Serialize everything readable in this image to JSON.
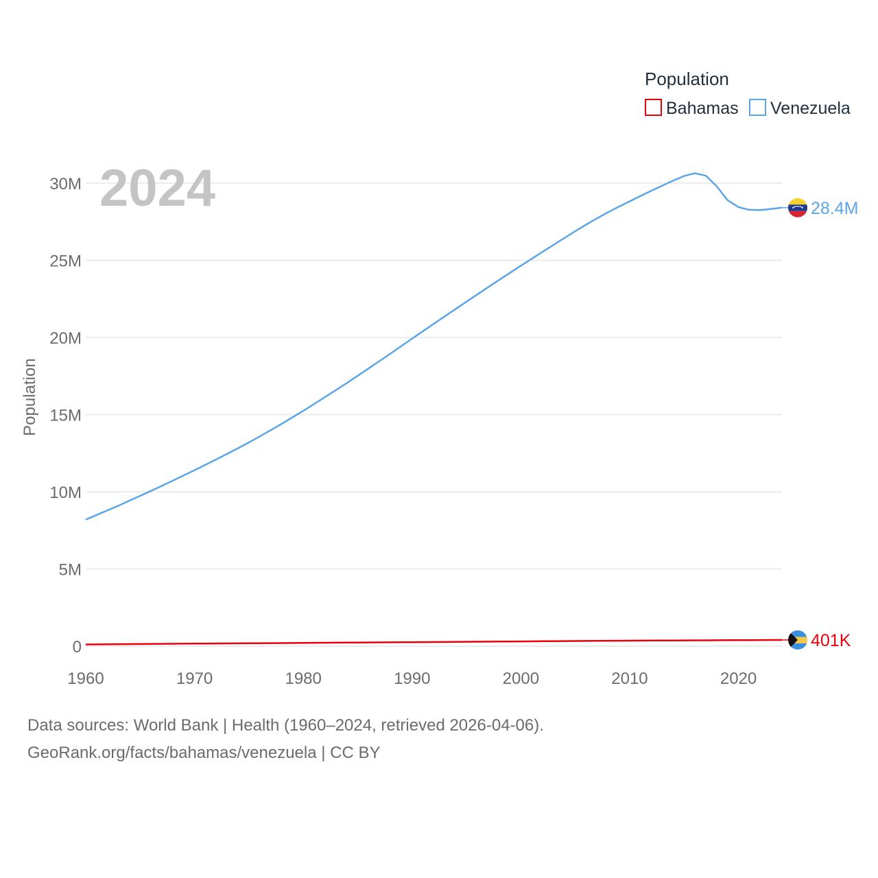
{
  "chart_data": {
    "type": "line",
    "year_label": "2024",
    "ylabel": "Population",
    "legend": {
      "title": "Population",
      "position": "top-right"
    },
    "xlim": [
      1960,
      2024
    ],
    "ylim": [
      0,
      30000000
    ],
    "x_ticks": [
      1960,
      1970,
      1980,
      1990,
      2000,
      2010,
      2020
    ],
    "x_tick_labels": [
      "1960",
      "1970",
      "1980",
      "1990",
      "2000",
      "2010",
      "2020"
    ],
    "y_ticks": [
      0,
      5000000,
      10000000,
      15000000,
      20000000,
      25000000,
      30000000
    ],
    "y_tick_labels": [
      "0",
      "5M",
      "10M",
      "15M",
      "20M",
      "25M",
      "30M"
    ],
    "grid": true,
    "x": [
      1960,
      1961,
      1962,
      1963,
      1964,
      1965,
      1966,
      1967,
      1968,
      1969,
      1970,
      1971,
      1972,
      1973,
      1974,
      1975,
      1976,
      1977,
      1978,
      1979,
      1980,
      1981,
      1982,
      1983,
      1984,
      1985,
      1986,
      1987,
      1988,
      1989,
      1990,
      1991,
      1992,
      1993,
      1994,
      1995,
      1996,
      1997,
      1998,
      1999,
      2000,
      2001,
      2002,
      2003,
      2004,
      2005,
      2006,
      2007,
      2008,
      2009,
      2010,
      2011,
      2012,
      2013,
      2014,
      2015,
      2016,
      2017,
      2018,
      2019,
      2020,
      2021,
      2022,
      2023,
      2024
    ],
    "series": [
      {
        "name": "Bahamas",
        "color": "#e8000b",
        "end_label": "401K",
        "flag": "bahamas-flag",
        "values": [
          110000,
          116000,
          122000,
          128000,
          134000,
          139000,
          145000,
          150000,
          155000,
          160000,
          165000,
          169000,
          173000,
          177000,
          181000,
          186000,
          191000,
          196000,
          201000,
          206000,
          211000,
          216000,
          221000,
          226000,
          231000,
          236000,
          241000,
          246000,
          250000,
          254000,
          258000,
          263000,
          268000,
          273000,
          278000,
          283000,
          288000,
          293000,
          298000,
          303000,
          308000,
          313000,
          318000,
          323000,
          328000,
          333000,
          338000,
          343000,
          348000,
          352000,
          356000,
          360000,
          364000,
          367000,
          370000,
          373000,
          376000,
          379000,
          382000,
          385000,
          388000,
          391000,
          394000,
          398000,
          401000
        ]
      },
      {
        "name": "Venezuela",
        "color": "#5aa5e8",
        "end_label": "28.4M",
        "flag": "venezuela-flag",
        "values": [
          8200000,
          8500000,
          8800000,
          9100000,
          9420000,
          9740000,
          10060000,
          10390000,
          10720000,
          11060000,
          11400000,
          11750000,
          12100000,
          12460000,
          12820000,
          13200000,
          13590000,
          13990000,
          14400000,
          14820000,
          15250000,
          15690000,
          16140000,
          16590000,
          17050000,
          17520000,
          17990000,
          18470000,
          18950000,
          19440000,
          19930000,
          20410000,
          20890000,
          21370000,
          21840000,
          22320000,
          22790000,
          23260000,
          23730000,
          24190000,
          24650000,
          25100000,
          25550000,
          26000000,
          26450000,
          26890000,
          27310000,
          27720000,
          28110000,
          28470000,
          28820000,
          29170000,
          29510000,
          29840000,
          30160000,
          30460000,
          30640000,
          30480000,
          29800000,
          28900000,
          28450000,
          28270000,
          28260000,
          28330000,
          28410000
        ]
      }
    ]
  },
  "source": {
    "line1": "Data sources: World Bank | Health (1960–2024, retrieved 2026-04-06).",
    "line2": "GeoRank.org/facts/bahamas/venezuela | CC BY"
  }
}
